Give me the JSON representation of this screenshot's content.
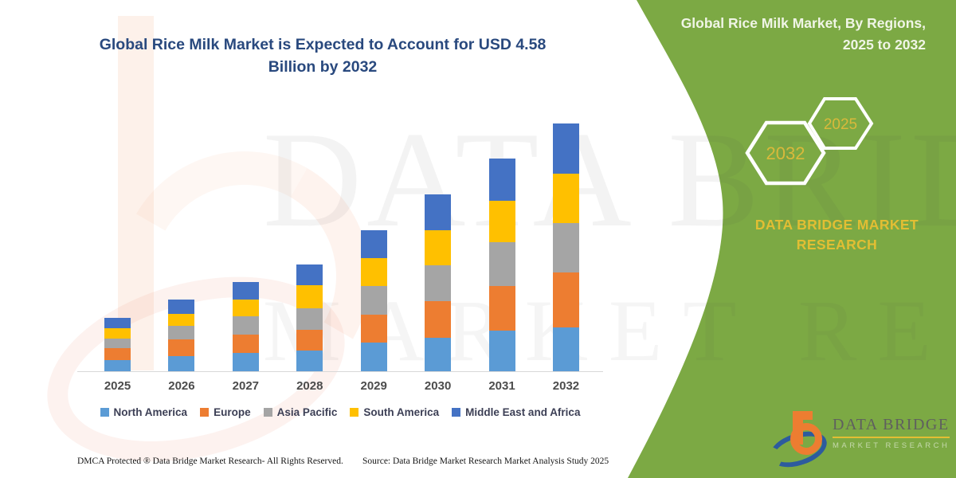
{
  "header": {
    "title": "Global Rice Milk Market is Expected to Account for USD 4.58 Billion by 2032"
  },
  "sidebar": {
    "title": "Global Rice Milk Market, By Regions, 2025 to 2032",
    "hexagon_large_label": "2032",
    "hexagon_small_label": "2025",
    "brand_text": "DATA BRIDGE MARKET RESEARCH",
    "panel_color": "#7CA944",
    "accent_gold": "#D9B93B"
  },
  "chart_data": {
    "type": "bar",
    "stacked": true,
    "title": "Global Rice Milk Market is Expected to Account for USD 4.58 Billion by 2032",
    "unit": "USD Billion",
    "xlabel": "",
    "ylabel": "",
    "grid": false,
    "legend_position": "bottom",
    "categories": [
      "2025",
      "2026",
      "2027",
      "2028",
      "2029",
      "2030",
      "2031",
      "2032"
    ],
    "series": [
      {
        "name": "North America",
        "color": "#5B9BD5",
        "values": [
          0.21,
          0.28,
          0.34,
          0.39,
          0.53,
          0.62,
          0.75,
          0.81
        ]
      },
      {
        "name": "Europe",
        "color": "#ED7D31",
        "values": [
          0.22,
          0.31,
          0.34,
          0.38,
          0.51,
          0.68,
          0.82,
          1.01
        ]
      },
      {
        "name": "Asia Pacific",
        "color": "#A5A5A5",
        "values": [
          0.18,
          0.25,
          0.33,
          0.4,
          0.54,
          0.66,
          0.81,
          0.91
        ]
      },
      {
        "name": "South America",
        "color": "#FFC000",
        "values": [
          0.18,
          0.22,
          0.31,
          0.42,
          0.51,
          0.64,
          0.76,
          0.92
        ]
      },
      {
        "name": "Middle East and Africa",
        "color": "#4472C4",
        "values": [
          0.2,
          0.27,
          0.33,
          0.38,
          0.51,
          0.67,
          0.78,
          0.93
        ]
      }
    ],
    "totals": [
      0.99,
      1.33,
      1.65,
      1.97,
      2.6,
      3.27,
      3.92,
      4.58
    ],
    "highlight_value": "USD 4.58 Billion",
    "highlight_year": "2032"
  },
  "watermark": {
    "line1": "DATA BRIDGE",
    "line2": "MARKET RESEARCH"
  },
  "logo": {
    "brand": "DATA BRIDGE",
    "sub": "MARKET RESEARCH"
  },
  "footer": {
    "dmca": "DMCA Protected ® Data Bridge Market Research-  All Rights Reserved.",
    "source": "Source: Data Bridge Market Research  Market Analysis Study 2025"
  }
}
